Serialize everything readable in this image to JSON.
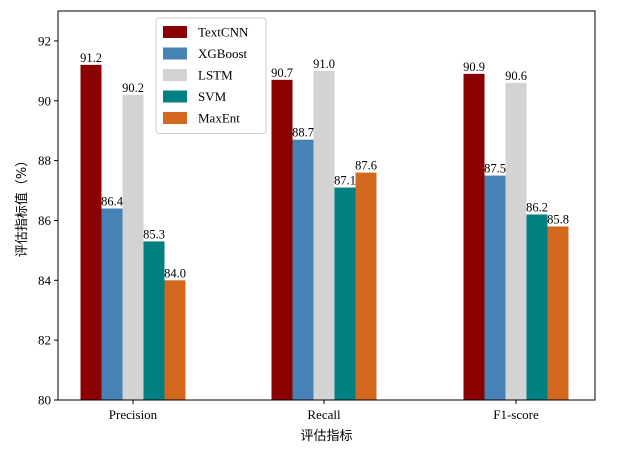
{
  "chart_data": {
    "type": "bar",
    "xlabel": "评估指标",
    "ylabel": "评估指标值（%）",
    "ylim": [
      80,
      93
    ],
    "yticks": [
      80,
      82,
      84,
      86,
      88,
      90,
      92
    ],
    "categories": [
      "Precision",
      "Recall",
      "F1-score"
    ],
    "series": [
      {
        "name": "TextCNN",
        "color": "#8b0000",
        "values": [
          91.2,
          90.7,
          90.9
        ],
        "labels": [
          "91.2",
          "90.7",
          "90.9"
        ]
      },
      {
        "name": "XGBoost",
        "color": "#4682b4",
        "values": [
          86.4,
          88.7,
          87.5
        ],
        "labels": [
          "86.4",
          "88.7",
          "87.5"
        ]
      },
      {
        "name": "LSTM",
        "color": "#d3d3d3",
        "values": [
          90.2,
          91.0,
          90.6
        ],
        "labels": [
          "90.2",
          "91.0",
          "90.6"
        ]
      },
      {
        "name": "SVM",
        "color": "#008080",
        "values": [
          85.3,
          87.1,
          86.2
        ],
        "labels": [
          "85.3",
          "87.1",
          "86.2"
        ]
      },
      {
        "name": "MaxEnt",
        "color": "#d2691e",
        "values": [
          84.0,
          87.6,
          85.8
        ],
        "labels": [
          "84.0",
          "87.6",
          "85.8"
        ]
      }
    ],
    "legend_position": "top-left",
    "grid": false
  }
}
